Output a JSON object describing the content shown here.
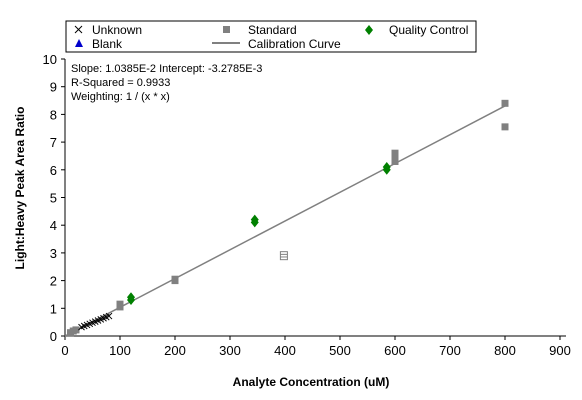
{
  "chart_data": {
    "type": "scatter",
    "title": "",
    "xlabel": "Analyte Concentration (uM)",
    "ylabel": "Light:Heavy Peak Area Ratio",
    "xlim": [
      0,
      900
    ],
    "ylim": [
      0,
      10
    ],
    "x_ticks": [
      "0",
      "100",
      "200",
      "300",
      "400",
      "500",
      "600",
      "700",
      "800",
      "900"
    ],
    "y_ticks": [
      "0",
      "1",
      "2",
      "3",
      "4",
      "5",
      "6",
      "7",
      "8",
      "9",
      "10"
    ],
    "grid": false,
    "legend_position": "top",
    "legend": [
      {
        "label": "Unknown",
        "marker": "cross",
        "color": "#000000"
      },
      {
        "label": "Standard",
        "marker": "square",
        "color": "#808080"
      },
      {
        "label": "Quality Control",
        "marker": "diamond",
        "color": "#008000"
      },
      {
        "label": "Blank",
        "marker": "triangle",
        "color": "#0000cc"
      },
      {
        "label": "Calibration Curve",
        "marker": "line",
        "color": "#808080"
      }
    ],
    "annotations": [
      "Slope: 1.0385E-2 Intercept: -3.2785E-3",
      "R-Squared = 0.9933",
      "Weighting: 1 / (x * x)"
    ],
    "calibration_curve": {
      "slope": 0.010385,
      "intercept": -0.0032785,
      "x_range": [
        0,
        800
      ],
      "color": "#808080"
    },
    "series": [
      {
        "name": "Standard",
        "marker": "square",
        "color": "#808080",
        "points": [
          {
            "x": 10,
            "y": 0.12
          },
          {
            "x": 15,
            "y": 0.18
          },
          {
            "x": 20,
            "y": 0.22
          },
          {
            "x": 100,
            "y": 1.05
          },
          {
            "x": 100,
            "y": 1.15
          },
          {
            "x": 200,
            "y": 2.0
          },
          {
            "x": 200,
            "y": 2.05
          },
          {
            "x": 600,
            "y": 6.3
          },
          {
            "x": 600,
            "y": 6.45
          },
          {
            "x": 600,
            "y": 6.6
          },
          {
            "x": 800,
            "y": 7.55
          },
          {
            "x": 800,
            "y": 8.4
          }
        ]
      },
      {
        "name": "Standard (excluded)",
        "marker": "square-open",
        "color": "#808080",
        "points": [
          {
            "x": 398,
            "y": 2.9
          }
        ]
      },
      {
        "name": "Quality Control",
        "marker": "diamond",
        "color": "#008000",
        "points": [
          {
            "x": 120,
            "y": 1.3
          },
          {
            "x": 120,
            "y": 1.4
          },
          {
            "x": 345,
            "y": 4.1
          },
          {
            "x": 345,
            "y": 4.2
          },
          {
            "x": 585,
            "y": 6.0
          },
          {
            "x": 585,
            "y": 6.1
          }
        ]
      },
      {
        "name": "Unknown",
        "marker": "cross",
        "color": "#000000",
        "points": [
          {
            "x": 30,
            "y": 0.32
          },
          {
            "x": 35,
            "y": 0.36
          },
          {
            "x": 40,
            "y": 0.4
          },
          {
            "x": 45,
            "y": 0.44
          },
          {
            "x": 50,
            "y": 0.48
          },
          {
            "x": 55,
            "y": 0.52
          },
          {
            "x": 60,
            "y": 0.56
          },
          {
            "x": 65,
            "y": 0.6
          },
          {
            "x": 70,
            "y": 0.64
          },
          {
            "x": 75,
            "y": 0.68
          },
          {
            "x": 80,
            "y": 0.72
          }
        ]
      }
    ]
  }
}
